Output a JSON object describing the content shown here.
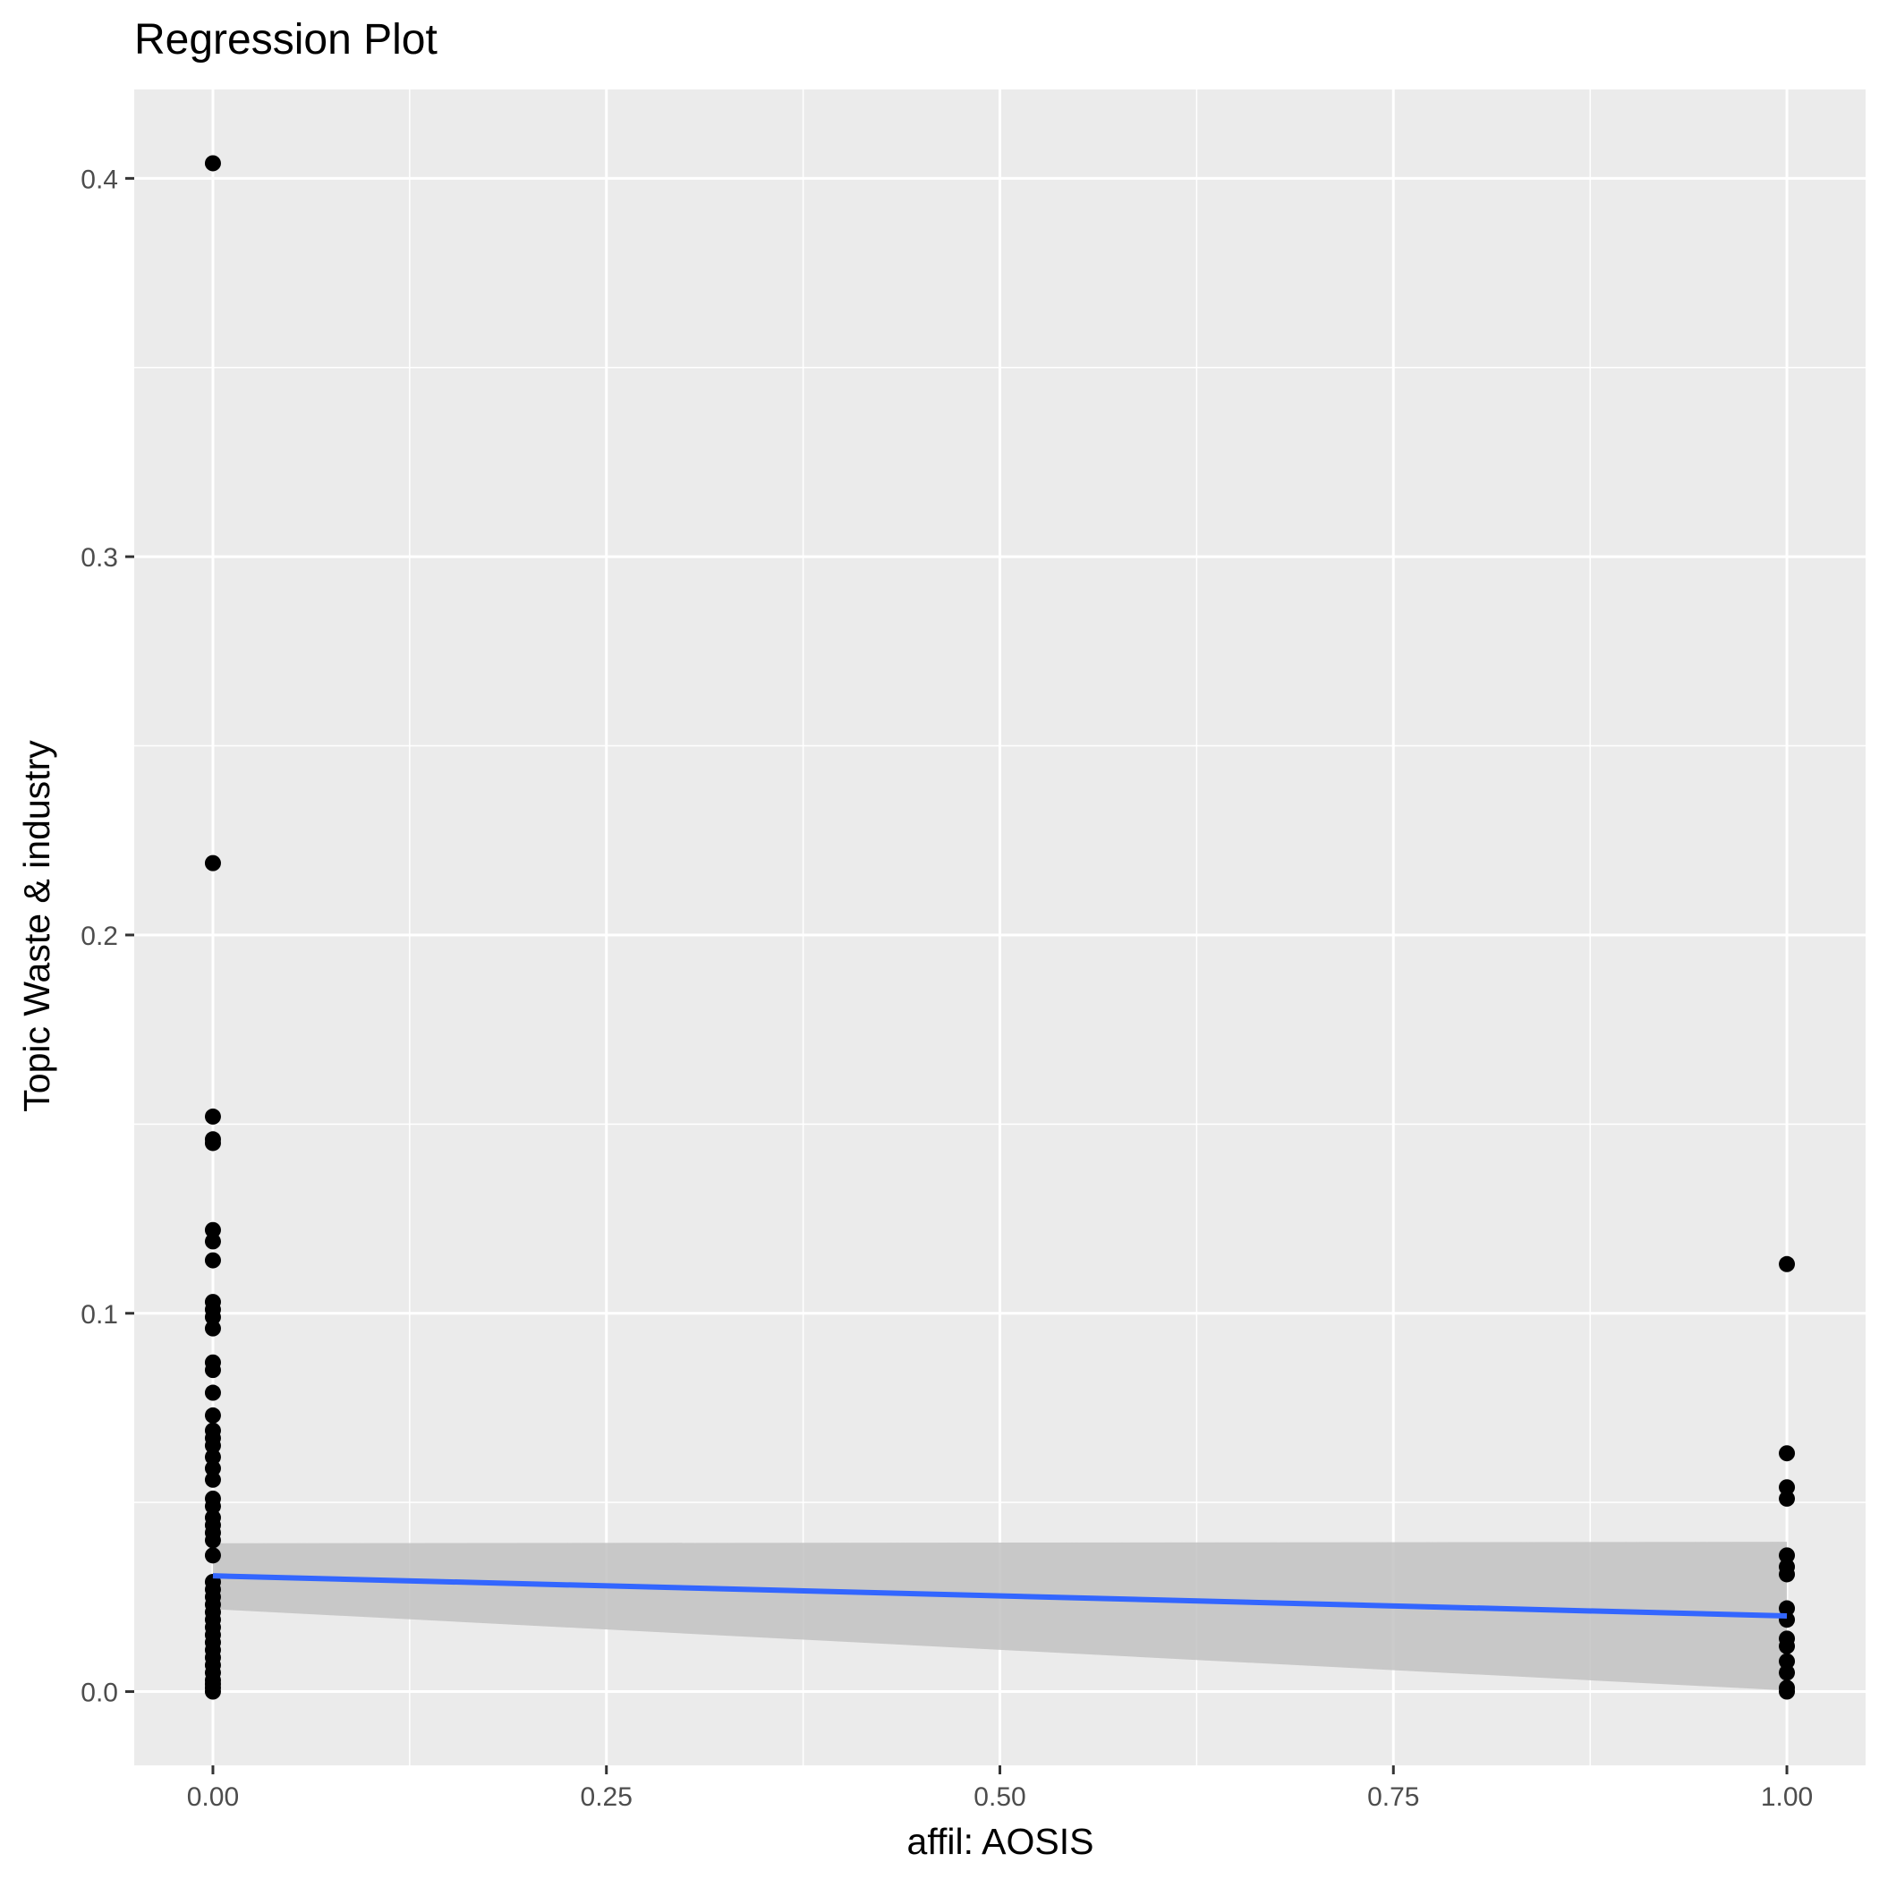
{
  "chart_data": {
    "type": "scatter",
    "title": "Regression Plot",
    "xlabel": "affil: AOSIS",
    "ylabel": "Topic Waste & industry",
    "xlim": [
      -0.05,
      1.05
    ],
    "ylim": [
      -0.0195,
      0.4235
    ],
    "x_ticks": [
      0.0,
      0.25,
      0.5,
      0.75,
      1.0
    ],
    "x_tick_labels": [
      "0.00",
      "0.25",
      "0.50",
      "0.75",
      "1.00"
    ],
    "y_ticks": [
      0.0,
      0.1,
      0.2,
      0.3,
      0.4
    ],
    "y_tick_labels": [
      "0.0",
      "0.1",
      "0.2",
      "0.3",
      "0.4"
    ],
    "grid": true,
    "legend": "none",
    "colors": {
      "panel": "#EBEBEB",
      "grid": "#FFFFFF",
      "points": "#000000",
      "fit_line": "#3366FF",
      "confidence_band": "#C2C2C2"
    },
    "points": {
      "x0": [
        0.404,
        0.219,
        0.152,
        0.146,
        0.145,
        0.122,
        0.119,
        0.114,
        0.103,
        0.101,
        0.099,
        0.096,
        0.087,
        0.085,
        0.079,
        0.073,
        0.069,
        0.067,
        0.065,
        0.062,
        0.059,
        0.056,
        0.051,
        0.049,
        0.046,
        0.044,
        0.042,
        0.04,
        0.036,
        0.029,
        0.027,
        0.025,
        0.023,
        0.021,
        0.019,
        0.017,
        0.015,
        0.013,
        0.011,
        0.009,
        0.007,
        0.005,
        0.003,
        0.002,
        0.001,
        0.0
      ],
      "x1": [
        0.113,
        0.063,
        0.054,
        0.051,
        0.036,
        0.033,
        0.031,
        0.022,
        0.019,
        0.014,
        0.012,
        0.008,
        0.005,
        0.001,
        0.0
      ]
    },
    "fit": {
      "x": [
        0.0,
        1.0
      ],
      "y": [
        0.0306,
        0.02
      ],
      "band_lower": [
        0.0218,
        0.0003
      ],
      "band_upper": [
        0.0392,
        0.0396
      ]
    }
  }
}
